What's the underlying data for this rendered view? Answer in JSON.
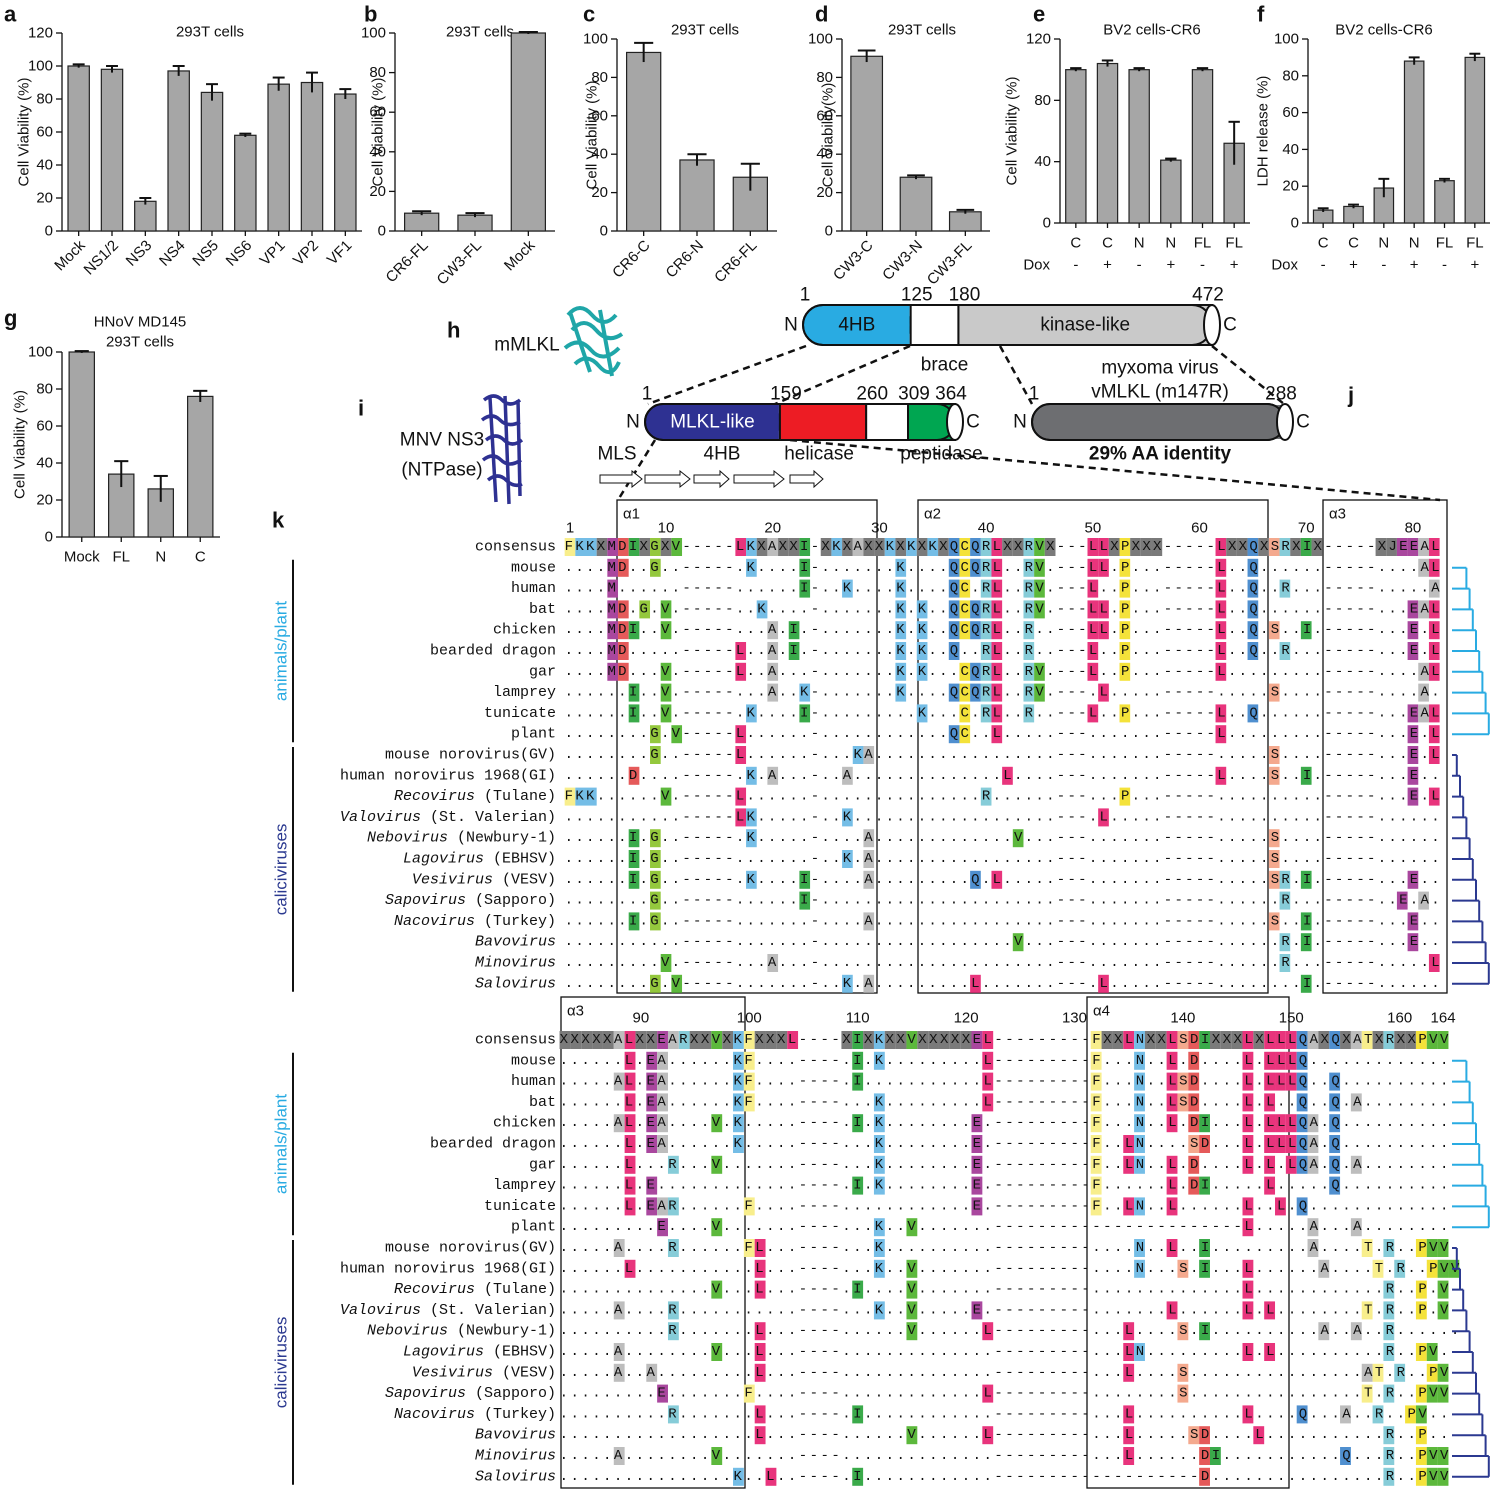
{
  "chart_data": [
    {
      "type": "bar",
      "panel": "a",
      "title": "293T cells",
      "ylabel": "Cell Viability (%)",
      "categories": [
        "Mock",
        "NS1/2",
        "NS3",
        "NS4",
        "NS5",
        "NS6",
        "VP1",
        "VP2",
        "VF1"
      ],
      "values": [
        100,
        98,
        18,
        97,
        84,
        58,
        89,
        90,
        83
      ],
      "errors": [
        1,
        2,
        2,
        3,
        5,
        1,
        4,
        6,
        3
      ],
      "color": "#a6a6a6",
      "ylim": [
        0,
        120
      ],
      "yticks": [
        0,
        20,
        40,
        60,
        80,
        100,
        120
      ]
    },
    {
      "type": "bar",
      "panel": "b",
      "title": "293T cells",
      "ylabel": "Cell Viability (%)",
      "categories": [
        "CR6-FL",
        "CW3-FL",
        "Mock"
      ],
      "values": [
        9,
        8,
        100
      ],
      "errors": [
        1,
        1,
        0.5
      ],
      "color": "#a6a6a6",
      "ylim": [
        0,
        100
      ],
      "yticks": [
        0,
        20,
        40,
        60,
        80,
        100
      ]
    },
    {
      "type": "bar",
      "panel": "c",
      "title": "293T cells",
      "ylabel": "Cell Viability (%)",
      "categories": [
        "CR6-C",
        "CR6-N",
        "CR6-FL"
      ],
      "values": [
        93,
        37,
        28
      ],
      "errors": [
        5,
        3,
        7
      ],
      "color": "#a6a6a6",
      "ylim": [
        0,
        100
      ],
      "yticks": [
        0,
        20,
        40,
        60,
        80,
        100
      ]
    },
    {
      "type": "bar",
      "panel": "d",
      "title": "293T cells",
      "ylabel": "Cell Viability(%)",
      "categories": [
        "CW3-C",
        "CW3-N",
        "CW3-FL"
      ],
      "values": [
        91,
        28,
        10
      ],
      "errors": [
        3,
        1,
        1
      ],
      "color": "#a6a6a6",
      "ylim": [
        0,
        100
      ],
      "yticks": [
        0,
        20,
        40,
        60,
        80,
        100
      ]
    },
    {
      "type": "bar",
      "panel": "e",
      "title": "BV2 cells-CR6",
      "ylabel": "Cell Viability (%)",
      "categories": [
        "C",
        "C",
        "N",
        "N",
        "FL",
        "FL"
      ],
      "treatment_label": "Dox",
      "treatment": [
        "-",
        "+",
        "-",
        "+",
        "-",
        "+"
      ],
      "values": [
        100,
        104,
        100,
        41,
        100,
        52
      ],
      "errors": [
        1,
        2,
        1,
        1,
        1,
        14
      ],
      "color": "#a6a6a6",
      "ylim": [
        0,
        120
      ],
      "yticks": [
        0,
        40,
        80,
        120
      ]
    },
    {
      "type": "bar",
      "panel": "f",
      "title": "BV2 cells-CR6",
      "ylabel": "LDH release (%)",
      "categories": [
        "C",
        "C",
        "N",
        "N",
        "FL",
        "FL"
      ],
      "treatment_label": "Dox",
      "treatment": [
        "-",
        "+",
        "-",
        "+",
        "-",
        "+"
      ],
      "values": [
        7,
        9,
        19,
        88,
        23,
        90
      ],
      "errors": [
        1,
        1,
        5,
        2,
        1,
        2
      ],
      "color": "#a6a6a6",
      "ylim": [
        0,
        100
      ],
      "yticks": [
        0,
        20,
        40,
        60,
        80,
        100
      ]
    },
    {
      "type": "bar",
      "panel": "g",
      "title": "HNoV MD145",
      "subtitle": "293T cells",
      "ylabel": "Cell Viability (%)",
      "categories": [
        "Mock",
        "FL",
        "N",
        "C"
      ],
      "values": [
        100,
        34,
        26,
        76
      ],
      "errors": [
        0.5,
        7,
        7,
        3
      ],
      "color": "#a6a6a6",
      "ylim": [
        0,
        100
      ],
      "yticks": [
        0,
        20,
        40,
        60,
        80,
        100
      ]
    }
  ],
  "diagrams": [
    {
      "panel": "h",
      "name": "mMLKL",
      "n_term": "N",
      "c_term": "C",
      "positions": [
        1,
        125,
        180,
        472
      ],
      "colors": [
        "#29abe2",
        "#ffffff",
        "#c9c9c9"
      ],
      "domains": [
        "4HB",
        "kinase-like"
      ],
      "linker": "brace"
    },
    {
      "panel": "i",
      "name": "MNV NS3",
      "subname": "(NTPase)",
      "n_term": "N",
      "c_term": "C",
      "positions": [
        1,
        159,
        260,
        309,
        364
      ],
      "colors": [
        "#2e3192",
        "#ed1c24",
        "#ffffff",
        "#00a651"
      ],
      "domains": [
        "MLKL-like",
        "helicase",
        "peptidase"
      ],
      "labels": [
        "MLS",
        "4HB"
      ]
    },
    {
      "panel": "j",
      "name": "myxoma virus",
      "subname": "vMLKL (m147R)",
      "n_term": "N",
      "c_term": "C",
      "positions": [
        1,
        288
      ],
      "colors": [
        "#6d6e71"
      ],
      "identity": "29% AA identity"
    }
  ],
  "alignment": {
    "panel": "k",
    "consensus_label": "consensus",
    "groups": [
      {
        "name": "animals/plant",
        "color": "#29abe2",
        "count": 9
      },
      {
        "name": "caliciviruses",
        "color": "#2b3990",
        "count": 12
      }
    ],
    "species": [
      {
        "name": "mouse"
      },
      {
        "name": "human"
      },
      {
        "name": "bat"
      },
      {
        "name": "chicken"
      },
      {
        "name": "bearded dragon"
      },
      {
        "name": "gar"
      },
      {
        "name": "lamprey"
      },
      {
        "name": "tunicate"
      },
      {
        "name": "plant"
      },
      {
        "name": "mouse norovirus(GV)"
      },
      {
        "name": "human norovirus 1968(GI)"
      },
      {
        "genus": "Recovirus",
        "strain": "(Tulane)"
      },
      {
        "genus": "Valovirus",
        "strain": "(St. Valerian)"
      },
      {
        "genus": "Nebovirus",
        "strain": "(Newbury-1)"
      },
      {
        "genus": "Lagovirus",
        "strain": "(EBHSV)"
      },
      {
        "genus": "Vesivirus",
        "strain": "(VESV)"
      },
      {
        "genus": "Sapovirus",
        "strain": "(Sapporo)"
      },
      {
        "genus": "Nacovirus",
        "strain": "(Turkey)"
      },
      {
        "genus": "Bavovirus"
      },
      {
        "genus": "Minovirus"
      },
      {
        "genus": "Salovirus"
      }
    ],
    "residue_colors": {
      "L": "#e8347c",
      "I": "#3aaa4a",
      "V": "#5cb83c",
      "G": "#94c83d",
      "K": "#74bde6",
      "N": "#74bde6",
      "Q": "#4f8fcf",
      "C": "#f4e23a",
      "P": "#f4e23a",
      "F": "#f8ee8c",
      "T": "#f8ee8c",
      "A": "#bdbdbd",
      "R": "#86ccd8",
      "E": "#a9479e",
      "M": "#a9479e",
      "D": "#e55a5a",
      "S": "#f4a98e",
      "X": "#7a7a7a",
      "J": "#7a7a7a"
    },
    "blocks": [
      {
        "ruler": [
          1,
          10,
          20,
          30,
          40,
          50,
          60,
          70,
          80
        ],
        "helices": [
          "α1",
          "α2",
          "α3"
        ],
        "consensus": "FKKXMDIXGXV-----LKXAXXI-XKXAXXKXKXKXQCQRLXXRVX---LLXPXXX-----LXXQXSRXIX-----XJEEAL",
        "rows": [
          "....MD..G..-----.K....I-.......K....QCQRL..RV.---LL.P...-----L..Q......-----....AL",
          "....M......-----......I-..K....K....QC.RL..RV.---L..P...-----L..Q..R...-----.....A",
          "....MD.G.V.-----..K....-.......K.K..QCQRL..RV.---LL.P...-----L..Q......-----...EAL",
          "....MDI..V.-----...A.I.-.......K.K..QCQRL..R..---LL.P...-----L..Q.S..I.-----...E.L",
          "....MD.....-----L..A.I.-.......K.K..Q..RL..R..---L..P...-----L..Q..R...-----...E.L",
          "....MD...V.-----L..A...-.......K.K...CQRL..RV.---L..P...-----L.........-----....AL",
          "......I..V.-----...A..K-.......K....QCQRL..RV.---.L.....-----.....S....-----....A.",
          "......I..V.-----.K....I-.........K...C.RL..R..---L..P...-----L..Q......-----...EAL",
          "........G.V-----L......-............QC..L.....---.......-----L.........-----...E.L",
          "........G..-----L......-...KA.................---.......-----.....S....-----...E.L",
          "......D....-----.K.A...-..A..............L....---.......-----L....S..I.-----...E..",
          "FKK......V.-----L......-...............R......---...P...-----..........-----...E.L",
          "...........-----LK.....-..K...................---.L.....-----..........-----......",
          "......I.G..-----.K.....-....A.............V...---.......-----.....S....-----......",
          "......I.G..-----.......-..K.A.................---.......-----.....S....-----......",
          "......I.G..-----.K....I-....A.........Q.L.....---.......-----.....SR.I.-----...E..",
          "........G..-----......I-......................---.......-----......R...-----..E.A.",
          "......I.G..-----.......-....A.................---.......-----.....S..I.-----...E..",
          "...........-----.......-..................V...---.......-----......R.I.-----...E..",
          ".........V.-----...A...-......................---.......-----......R...-----.....L",
          "........G.V-----.......-..K.A.........L.......---.L.....-----........I.-----......"
        ]
      },
      {
        "ruler": [
          90,
          100,
          110,
          120,
          130,
          140,
          150,
          160,
          164
        ],
        "helices": [
          "α3",
          "α4"
        ],
        "consensus": "XXXXXALXXEARXXVXKFXXXL----XIXKXXVXXXXXEL---------FXXLNXXLSDIXXXLXLLLQAXQXATXRXXPVV",
        "rows": [
          "......L.EA......KF....----.I.K.........L---------F...N..L.D....L.LLLQ.............",
          ".....AL.EA......KF....----.I...........L---------F...N..LSD....L.LLLQ..Q..........",
          "......L.EA......KF....----...K.........L---------F...N..LSD....L.L..Q..Q.A........",
          ".....AL.EA....V.K.....----.I.K........E.---------F...N..L.DI...L.LLLQA.Q..........",
          "......L.EA......K.....----...K........E.---------F..LN....SD...L.LLLQA.Q..........",
          "......L...R...V.......----...K........E.---------F..LN..L.D....L.L.LQA.Q.A........",
          "......L.E.............----.I.K........E.---------F......L.DI.....L.....Q..........",
          "......L.EAR......F....----............E.---------F..LN..L......L..L.Q.............",
          ".........E....V.......----...K..V.......-----------------------L.....A...A........",
          ".....A....R......FL...----...K..........---------....N..L..I.........A....T.R..PVV",
          "......L...........L...----...K..V.......---------....N...S.I...L......A....T.R..PVV",
          "..............V...L...----.I....V.......---------..............L............R..P.V",
          ".....A....R...........----...K..V.....E.---------.......L......L.L........T.R..P.V",
          "..........R.......L...----......V......L---------...L....S.I..........A..A..R......",
          ".....A........V...L...----..............---------...LN.........L.L..........R..PV.",
          ".....A..A.........L...----..............---------...L....S................AT.R..PV",
          ".........E.......F....----.............L---------........S................T.R..PVV",
          "..........R.......L...----.I............---------...L..........L....Q...A..R..PV..",
          "..................L...----......V......L---------...L.....SD....L...........R..P..",
          ".....A........V.......----..............---------...L......DI...........Q...R..PVV",
          "................K..L..----.I............-------------------D................R..PVV"
        ]
      }
    ]
  }
}
